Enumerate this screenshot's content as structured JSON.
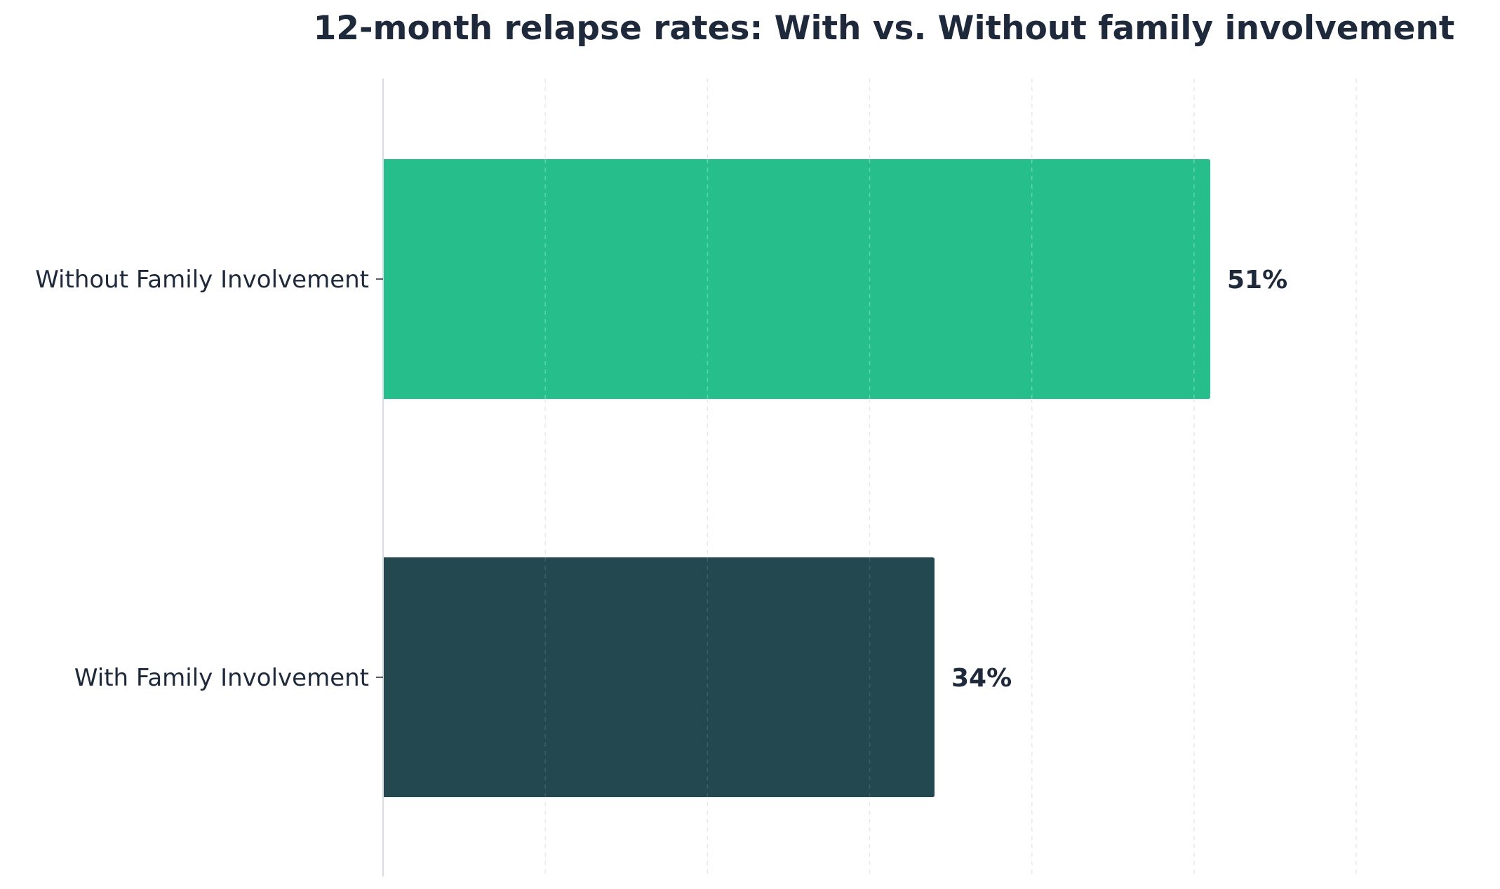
{
  "chart_data": {
    "type": "bar",
    "orientation": "horizontal",
    "title": "12-month relapse rates: With vs. Without family involvement",
    "xlabel": "",
    "ylabel": "",
    "categories": [
      "Without Family Involvement",
      "With Family Involvement"
    ],
    "values": [
      51,
      34
    ],
    "value_labels": [
      "51%",
      "34%"
    ],
    "xlim": [
      0,
      60
    ],
    "grid": "vertical dashed",
    "colors": [
      "#26bf8c",
      "#234850"
    ]
  }
}
